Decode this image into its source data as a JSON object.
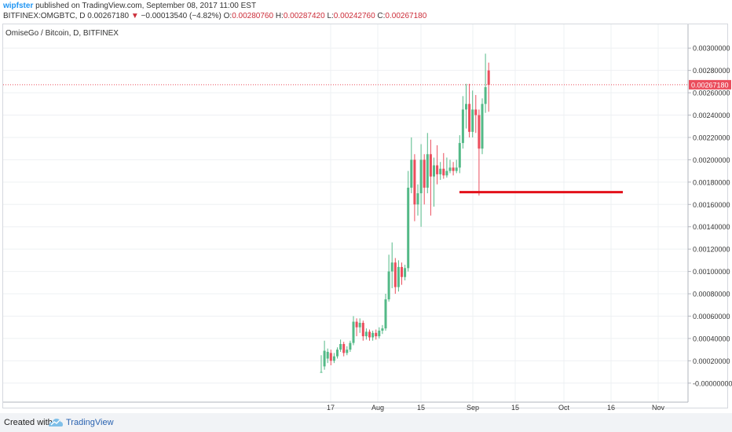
{
  "header": {
    "author": "wipfster",
    "published": "published on TradingView.com, September 08, 2017 11:00 EST",
    "symbol": "BITFINEX:OMGBTC, D",
    "last": "0.00267180",
    "change_arrow": "▼",
    "change": "−0.00013540 (−4.82%)",
    "open_label": "O:",
    "open": "0.00280760",
    "high_label": "H:",
    "high": "0.00287420",
    "low_label": "L:",
    "low": "0.00242760",
    "close_label": "C:",
    "close": "0.00267180"
  },
  "footer": {
    "created_with": "Created with",
    "brand": "TradingView",
    "logo_icon": "tradingview-logo-icon"
  },
  "colors": {
    "up": "#53b987",
    "down": "#eb4d5c",
    "price_line": "#eb4d5c",
    "support_line": "#e3111a",
    "grid": "#eef0f3",
    "axis_text": "#333333"
  },
  "chart_data": {
    "type": "candlestick",
    "title": "OmiseGo / Bitcoin, D, BITFINEX",
    "ylim": [
      -0.0001,
      0.0031
    ],
    "y_ticks": [
      "0.00300000",
      "0.00280000",
      "0.00260000",
      "0.00240000",
      "0.00220000",
      "0.00200000",
      "0.00180000",
      "0.00160000",
      "0.00140000",
      "0.00120000",
      "0.00100000",
      "0.00080000",
      "0.00060000",
      "0.00040000",
      "0.00020000",
      "-0.00000000"
    ],
    "x_ticks": [
      "17",
      "Aug",
      "15",
      "Sep",
      "15",
      "Oct",
      "16",
      "Nov"
    ],
    "last_price": 0.0026718,
    "last_price_label": "0.00267180",
    "support_level": 0.00171,
    "candles": [
      [
        0.0001,
        0.0001,
        0.00025,
        0.0001
      ],
      [
        0.00015,
        0.00029,
        0.00038,
        0.00012
      ],
      [
        0.00022,
        0.00028,
        0.00031,
        0.00018
      ],
      [
        0.00027,
        0.0002,
        0.0003,
        0.00016
      ],
      [
        0.0002,
        0.00024,
        0.00027,
        0.00018
      ],
      [
        0.00024,
        0.0003,
        0.00032,
        0.00022
      ],
      [
        0.0003,
        0.00035,
        0.00039,
        0.00028
      ],
      [
        0.00035,
        0.00027,
        0.00037,
        0.00024
      ],
      [
        0.00027,
        0.0003,
        0.00033,
        0.00025
      ],
      [
        0.0003,
        0.00036,
        0.00038,
        0.00028
      ],
      [
        0.00036,
        0.00055,
        0.0006,
        0.00034
      ],
      [
        0.00055,
        0.0005,
        0.00058,
        0.00042
      ],
      [
        0.0005,
        0.00054,
        0.00058,
        0.00045
      ],
      [
        0.00054,
        0.00042,
        0.00056,
        0.00038
      ],
      [
        0.00042,
        0.00046,
        0.00049,
        0.00039
      ],
      [
        0.00046,
        0.00041,
        0.00048,
        0.00038
      ],
      [
        0.00041,
        0.00045,
        0.00047,
        0.00038
      ],
      [
        0.00045,
        0.00042,
        0.00048,
        0.00039
      ],
      [
        0.00042,
        0.00047,
        0.0005,
        0.0004
      ],
      [
        0.00047,
        0.00049,
        0.00052,
        0.00044
      ],
      [
        0.00049,
        0.00075,
        0.0008,
        0.00047
      ],
      [
        0.00075,
        0.001,
        0.00115,
        0.00073
      ],
      [
        0.001,
        0.00108,
        0.00126,
        0.00085
      ],
      [
        0.00108,
        0.00086,
        0.00112,
        0.0008
      ],
      [
        0.00086,
        0.00104,
        0.0011,
        0.00082
      ],
      [
        0.00104,
        0.00095,
        0.00108,
        0.00088
      ],
      [
        0.00095,
        0.00103,
        0.00106,
        0.00092
      ],
      [
        0.00103,
        0.00175,
        0.0019,
        0.001
      ],
      [
        0.00175,
        0.002,
        0.0022,
        0.0017
      ],
      [
        0.002,
        0.0016,
        0.00205,
        0.00145
      ],
      [
        0.0016,
        0.0017,
        0.00178,
        0.0015
      ],
      [
        0.0017,
        0.002,
        0.00214,
        0.0014
      ],
      [
        0.002,
        0.00175,
        0.00205,
        0.0016
      ],
      [
        0.00175,
        0.00205,
        0.00224,
        0.0017
      ],
      [
        0.00205,
        0.00185,
        0.00218,
        0.0015
      ],
      [
        0.00185,
        0.00195,
        0.00202,
        0.00158
      ],
      [
        0.00195,
        0.00187,
        0.00213,
        0.00178
      ],
      [
        0.00187,
        0.00192,
        0.00198,
        0.00182
      ],
      [
        0.00192,
        0.00186,
        0.00206,
        0.00183
      ],
      [
        0.00186,
        0.0019,
        0.00202,
        0.00184
      ],
      [
        0.0019,
        0.00193,
        0.002,
        0.00188
      ],
      [
        0.00193,
        0.0019,
        0.00198,
        0.00186
      ],
      [
        0.0019,
        0.00193,
        0.002,
        0.00188
      ],
      [
        0.00193,
        0.00215,
        0.00222,
        0.00188
      ],
      [
        0.00215,
        0.00245,
        0.00257,
        0.0021
      ],
      [
        0.00245,
        0.0025,
        0.00268,
        0.00228
      ],
      [
        0.0025,
        0.00225,
        0.00268,
        0.0022
      ],
      [
        0.00225,
        0.00245,
        0.00262,
        0.0022
      ],
      [
        0.00245,
        0.0024,
        0.00258,
        0.00224
      ],
      [
        0.0024,
        0.0021,
        0.00245,
        0.00168
      ],
      [
        0.0021,
        0.0025,
        0.00255,
        0.00205
      ],
      [
        0.0025,
        0.00265,
        0.00295,
        0.00242
      ],
      [
        0.0028,
        0.00267,
        0.00287,
        0.00243
      ]
    ]
  }
}
